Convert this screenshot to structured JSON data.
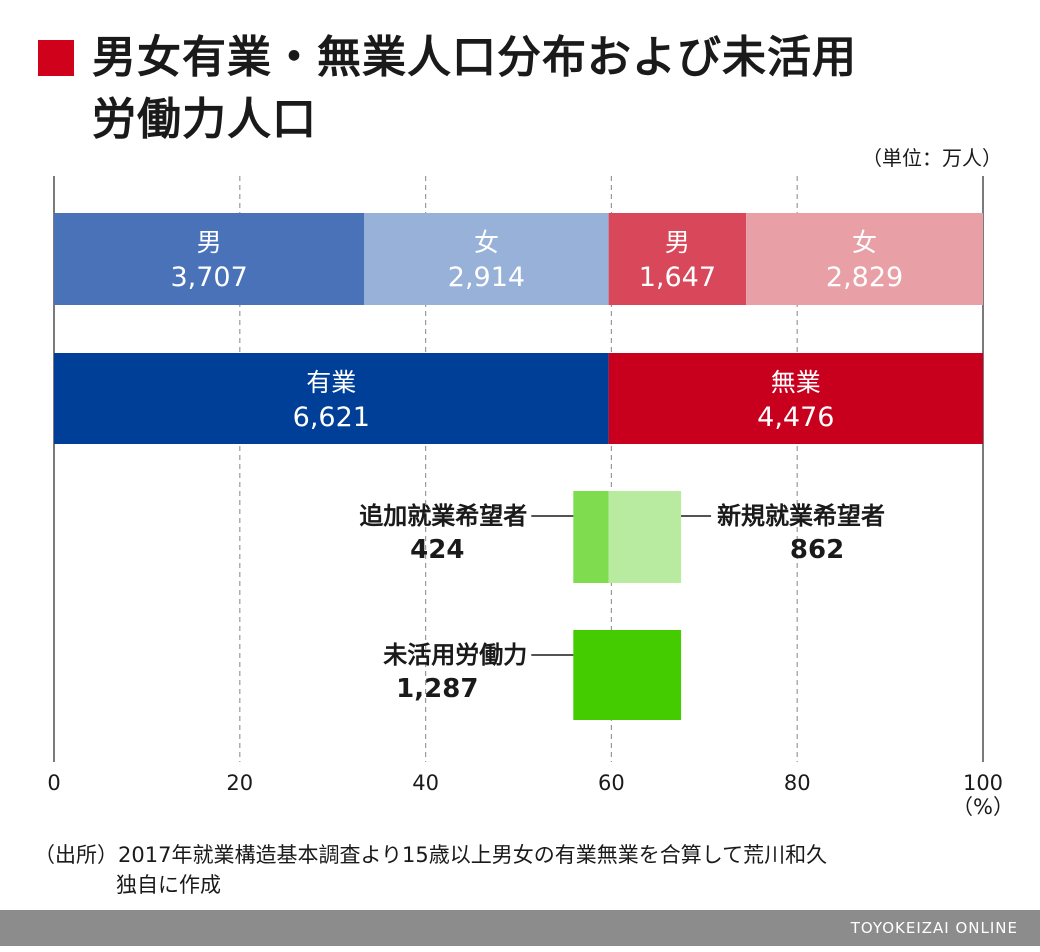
{
  "title": {
    "line1": "男女有業・無業人口分布および未活用",
    "line2": "労働力人口",
    "marker_color": "#d0021b"
  },
  "unit": "（単位：万人）",
  "chart_data": {
    "type": "bar",
    "orientation": "horizontal-stacked",
    "xlim": [
      0,
      100
    ],
    "xticks": [
      "0",
      "20",
      "40",
      "60",
      "80",
      "100"
    ],
    "xunit": "（%）",
    "grid": "vertical-dashed",
    "rows": [
      {
        "name": "gender",
        "segments": [
          {
            "label": "男",
            "value": 3707,
            "value_text": "3,707",
            "start_pct": 0,
            "end_pct": 33.4,
            "color": "#4a72b8"
          },
          {
            "label": "女",
            "value": 2914,
            "value_text": "2,914",
            "start_pct": 33.4,
            "end_pct": 59.7,
            "color": "#97b1d8"
          },
          {
            "label": "男",
            "value": 1647,
            "value_text": "1,647",
            "start_pct": 59.7,
            "end_pct": 74.5,
            "color": "#d8475a"
          },
          {
            "label": "女",
            "value": 2829,
            "value_text": "2,829",
            "start_pct": 74.5,
            "end_pct": 100,
            "color": "#e8a0a6"
          }
        ]
      },
      {
        "name": "employment",
        "segments": [
          {
            "label": "有業",
            "value": 6621,
            "value_text": "6,621",
            "start_pct": 0,
            "end_pct": 59.7,
            "color": "#003f98"
          },
          {
            "label": "無業",
            "value": 4476,
            "value_text": "4,476",
            "start_pct": 59.7,
            "end_pct": 100,
            "color": "#c8001e"
          }
        ]
      },
      {
        "name": "job-seekers",
        "segments": [
          {
            "label": "追加就業希望者",
            "value": 424,
            "value_text": "424",
            "start_pct": 55.9,
            "end_pct": 59.7,
            "color": "#7fdc4f",
            "label_side": "left"
          },
          {
            "label": "新規就業希望者",
            "value": 862,
            "value_text": "862",
            "start_pct": 59.7,
            "end_pct": 67.5,
            "color": "#b8eb9f",
            "label_side": "right"
          }
        ]
      },
      {
        "name": "underutilized",
        "segments": [
          {
            "label": "未活用労働力",
            "value": 1287,
            "value_text": "1,287",
            "start_pct": 55.9,
            "end_pct": 67.5,
            "color": "#44cc00",
            "label_side": "left"
          }
        ]
      }
    ]
  },
  "source": {
    "prefix": "（出所）",
    "line1": "2017年就業構造基本調査より15歳以上男女の有業無業を合算して荒川和久",
    "line2": "独自に作成"
  },
  "footer": {
    "brand": "TOYOKEIZAI ONLINE",
    "bar_color": "#8c8c8c"
  }
}
